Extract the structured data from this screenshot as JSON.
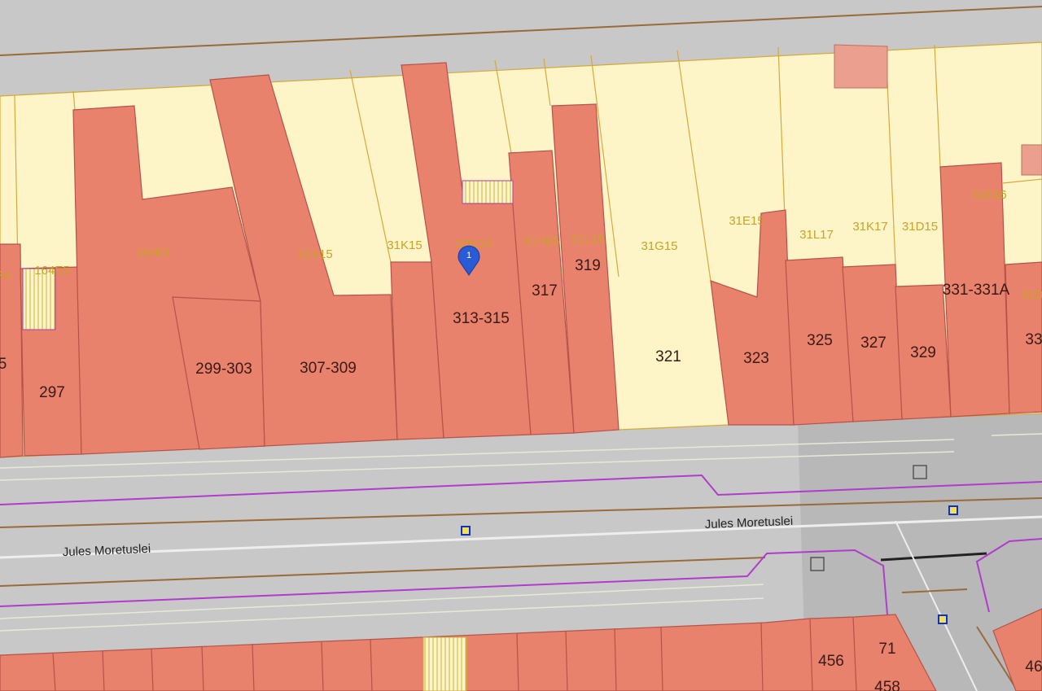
{
  "marker": {
    "label": "1"
  },
  "parcel_codes": [
    "R4",
    "164E5",
    "164K5",
    "31X15",
    "31K15",
    "31N15",
    "31H15",
    "31L15",
    "31G15",
    "31E15",
    "31L17",
    "31K17",
    "31D15",
    "31E16",
    "31D"
  ],
  "house_numbers": [
    "5",
    "297",
    "299-303",
    "307-309",
    "313-315",
    "317",
    "319",
    "321",
    "323",
    "325",
    "327",
    "329",
    "331-331A",
    "33",
    "456",
    "71",
    "458",
    "46"
  ],
  "street_labels": [
    "Jules Moretuslei",
    "Jules Moretuslei"
  ]
}
